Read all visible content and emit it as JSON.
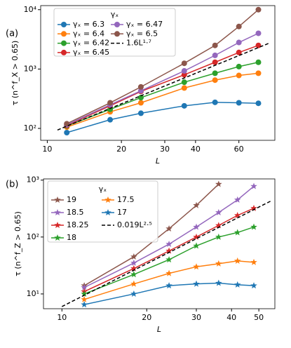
{
  "chart_data": [
    {
      "type": "line",
      "panel_label": "(a)",
      "xlabel": "L",
      "ylabel": "τ (n^f_X > 0.65)",
      "xlog": true,
      "ylog": true,
      "xlim": [
        9.4,
        84
      ],
      "ylim": [
        63,
        11700
      ],
      "xticks": [
        10,
        20,
        30,
        40,
        60
      ],
      "yticks": [
        {
          "value": 100,
          "label": "10²"
        },
        {
          "value": 1000,
          "label": "10³"
        },
        {
          "value": 10000,
          "label": "10⁴"
        }
      ],
      "marker": "o",
      "legend_title": "γₓ",
      "legend": "upper left",
      "x": [
        12,
        18,
        24,
        36,
        48,
        60,
        72
      ],
      "series": [
        {
          "name": "γₓ = 6.3",
          "color": "#1f77b4",
          "values": [
            85,
            140,
            180,
            240,
            275,
            270,
            265
          ]
        },
        {
          "name": "γₓ = 6.4",
          "color": "#ff7f0e",
          "values": [
            105,
            190,
            270,
            480,
            650,
            780,
            850
          ]
        },
        {
          "name": "γₓ = 6.42",
          "color": "#2ca02c",
          "values": [
            110,
            210,
            330,
            600,
            850,
            1100,
            1300
          ]
        },
        {
          "name": "γₓ = 6.45",
          "color": "#d62728",
          "values": [
            112,
            240,
            420,
            800,
            1300,
            1900,
            2500
          ]
        },
        {
          "name": "γₓ = 6.47",
          "color": "#9467bd",
          "values": [
            115,
            250,
            430,
            930,
            1700,
            2800,
            4000
          ]
        },
        {
          "name": "γₓ = 6.5",
          "color": "#8c564b",
          "values": [
            120,
            270,
            500,
            1250,
            2500,
            5200,
            10000
          ]
        },
        {
          "name": "1.6L¹·⁷",
          "color": "#000000",
          "dashed": true,
          "x": [
            11,
            80
          ],
          "values": [
            94,
            2750
          ]
        }
      ]
    },
    {
      "type": "line",
      "panel_label": "(b)",
      "xlabel": "L",
      "ylabel": "τ (n^f_Z > 0.65)",
      "xlog": true,
      "ylog": true,
      "xlim": [
        8.6,
        57
      ],
      "ylim": [
        5.5,
        1050
      ],
      "xticks": [
        10,
        20,
        30,
        40,
        50
      ],
      "yticks": [
        {
          "value": 10,
          "label": "10¹"
        },
        {
          "value": 100,
          "label": "10²"
        },
        {
          "value": 1000,
          "label": "10³"
        }
      ],
      "marker": "*",
      "legend_title": "γₓ",
      "legend": "upper left",
      "x": [
        12,
        18,
        24,
        30,
        36,
        42,
        48
      ],
      "series": [
        {
          "name": "19",
          "color": "#8c564b",
          "values": [
            14,
            45,
            140,
            360,
            850,
            null,
            null
          ]
        },
        {
          "name": "18.5",
          "color": "#9467bd",
          "values": [
            13,
            35,
            75,
            150,
            270,
            450,
            780
          ]
        },
        {
          "name": "18.25",
          "color": "#d62728",
          "values": [
            11,
            28,
            57,
            100,
            160,
            240,
            320
          ]
        },
        {
          "name": "18",
          "color": "#2ca02c",
          "values": [
            10,
            22,
            40,
            70,
            100,
            120,
            150
          ]
        },
        {
          "name": "17.5",
          "color": "#ff7f0e",
          "values": [
            8,
            15,
            23,
            30,
            34,
            38,
            36
          ]
        },
        {
          "name": "17",
          "color": "#1f77b4",
          "values": [
            6.5,
            10,
            14,
            15,
            15.5,
            14.5,
            14
          ]
        },
        {
          "name": "0.019L²·⁵",
          "color": "#000000",
          "dashed": true,
          "x": [
            10,
            55
          ],
          "values": [
            6,
            426
          ]
        }
      ]
    }
  ]
}
